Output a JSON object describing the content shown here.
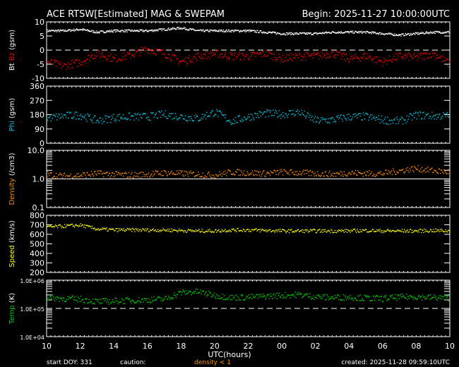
{
  "header": {
    "title": "ACE RTSW[Estimated] MAG & SWEPAM",
    "begin": "Begin: 2025-11-27 10:00:00UTC"
  },
  "footer": {
    "start_doy": "start DOY: 331",
    "caution": "caution:",
    "caution_density": "density < 1",
    "created": "created: 2025-11-28 09:59:10UTC",
    "xlabel": "UTC(hours)"
  },
  "colors": {
    "bt": "#ffffff",
    "bz": "#ff0000",
    "phi": "#00c8e6",
    "density": "#ff8c00",
    "speed": "#ffff00",
    "temp": "#00d200",
    "caution": "#ff9900"
  },
  "chart_data": {
    "type": "scatter",
    "x_ticks": [
      "10",
      "12",
      "14",
      "16",
      "18",
      "20",
      "22",
      "00",
      "02",
      "04",
      "06",
      "08",
      "10"
    ],
    "x_hours": [
      0,
      1,
      2,
      3,
      4,
      5,
      6,
      7,
      8,
      9,
      10,
      11,
      12,
      13,
      14,
      15,
      16,
      17,
      18,
      19,
      20,
      21,
      22,
      23,
      24
    ],
    "panels": [
      {
        "id": "mag",
        "ylabel_parts": [
          "Bt",
          "Bz",
          "(gsm)"
        ],
        "ylim": [
          -10,
          10
        ],
        "scale": "linear",
        "yticks": [
          "10",
          "5",
          "0",
          "-5",
          "-10"
        ],
        "tick_values": [
          10,
          5,
          0,
          -5,
          -10
        ],
        "ref_line": 0,
        "series": [
          {
            "name": "Bt",
            "color": "#ffffff",
            "values": [
              7,
              7,
              7.5,
              6.5,
              7,
              7,
              7,
              7.5,
              8,
              7,
              7,
              7,
              7,
              6.5,
              6,
              6,
              6,
              6.5,
              6.5,
              6.5,
              6,
              5.5,
              6,
              6.5,
              6.5
            ]
          },
          {
            "name": "Bz",
            "color": "#ff0000",
            "values": [
              -4,
              -5.5,
              -4,
              -1,
              -3,
              -1.5,
              0.5,
              -1,
              -4,
              -2,
              -1,
              -2,
              -2,
              -1,
              -3,
              -2,
              -2,
              -1,
              -3,
              -2,
              -4,
              -2,
              -2.5,
              -1,
              -5
            ]
          }
        ]
      },
      {
        "id": "phi",
        "ylabel_parts": [
          "Phi",
          "(gsm)"
        ],
        "ylim": [
          0,
          360
        ],
        "scale": "linear",
        "yticks": [
          "360",
          "270",
          "180",
          "90",
          "0"
        ],
        "tick_values": [
          360,
          270,
          180,
          90,
          0
        ],
        "series": [
          {
            "name": "Phi",
            "color": "#00c8e6",
            "values": [
              160,
              175,
              180,
              145,
              165,
              170,
              170,
              185,
              170,
              160,
              200,
              140,
              170,
              190,
              185,
              200,
              145,
              150,
              170,
              170,
              150,
              140,
              180,
              175,
              175
            ]
          }
        ]
      },
      {
        "id": "density",
        "ylabel_parts": [
          "Density",
          "(/cm3)"
        ],
        "ylim": [
          0.1,
          10
        ],
        "scale": "log",
        "yticks": [
          "10.0",
          "1.0",
          "0.1"
        ],
        "tick_values": [
          10,
          1,
          0.1
        ],
        "ref_line": 1,
        "series": [
          {
            "name": "Density",
            "color": "#ff8c00",
            "values": [
              1.5,
              1.3,
              1.4,
              1.6,
              1.5,
              1.4,
              1.5,
              1.7,
              1.6,
              1.5,
              1.4,
              1.8,
              1.7,
              1.6,
              1.8,
              1.7,
              1.6,
              1.5,
              1.7,
              1.6,
              1.6,
              2.0,
              2.4,
              2.0,
              1.8
            ]
          }
        ]
      },
      {
        "id": "speed",
        "ylabel_parts": [
          "Speed",
          "(km/s)"
        ],
        "ylim": [
          200,
          800
        ],
        "scale": "linear",
        "yticks": [
          "800",
          "700",
          "600",
          "500",
          "400",
          "300",
          "200"
        ],
        "tick_values": [
          800,
          700,
          600,
          500,
          400,
          300,
          200
        ],
        "series": [
          {
            "name": "Speed",
            "color": "#ffff00",
            "values": [
              680,
              690,
              700,
              660,
              650,
              650,
              650,
              650,
              645,
              640,
              640,
              650,
              650,
              645,
              640,
              640,
              640,
              640,
              640,
              645,
              640,
              640,
              640,
              645,
              640
            ]
          }
        ]
      },
      {
        "id": "temp",
        "ylabel_parts": [
          "Temp",
          "(K)"
        ],
        "ylim": [
          10000,
          1000000
        ],
        "scale": "log",
        "yticks": [
          "1.0E+06",
          "1.0E+05",
          "1.0E+04"
        ],
        "tick_values": [
          1000000,
          100000,
          10000
        ],
        "ref_line": 100000,
        "series": [
          {
            "name": "Temp",
            "color": "#00d200",
            "values": [
              250000,
              230000,
              220000,
              180000,
              190000,
              200000,
              210000,
              220000,
              380000,
              400000,
              300000,
              250000,
              260000,
              280000,
              300000,
              320000,
              270000,
              250000,
              260000,
              240000,
              230000,
              260000,
              270000,
              250000,
              240000
            ]
          }
        ]
      }
    ]
  }
}
